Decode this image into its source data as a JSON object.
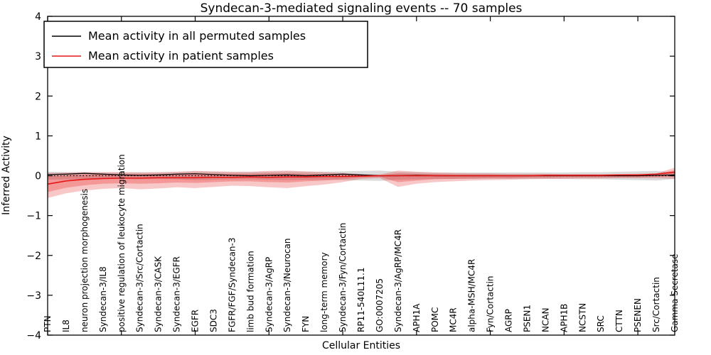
{
  "chart_data": {
    "type": "line",
    "title": "Syndecan-3-mediated signaling events -- 70 samples",
    "xlabel": "Cellular Entities",
    "ylabel": "Inferred Activity",
    "ylim": [
      -4,
      4
    ],
    "yticks": [
      -4,
      -3,
      -2,
      -1,
      0,
      1,
      2,
      3,
      4
    ],
    "xtick_step": 4,
    "grid": false,
    "legend_position": "upper left",
    "zero_line": {
      "style": "dotted",
      "color": "#000000",
      "y": 0
    },
    "categories": [
      "PTN",
      "IL8",
      "neuron projection morphogenesis",
      "Syndecan-3/IL8",
      "positive regulation of leukocyte migration",
      "Syndecan-3/Src/Cortactin",
      "Syndecan-3/CASK",
      "Syndecan-3/EGFR",
      "EGFR",
      "SDC3",
      "FGFR/FGF/Syndecan-3",
      "limb bud formation",
      "Syndecan-3/AgRP",
      "Syndecan-3/Neurocan",
      "FYN",
      "long-term memory",
      "Syndecan-3/Fyn/Cortactin",
      "RP11-540L11.1",
      "GO:0007205",
      "Syndecan-3/AgRP/MC4R",
      "APH1A",
      "POMC",
      "MC4R",
      "alpha-MSH/MC4R",
      "Fyn/Cortactin",
      "AGRP",
      "PSEN1",
      "NCAN",
      "APH1B",
      "NCSTN",
      "SRC",
      "CTTN",
      "PSENEN",
      "Src/Cortactin",
      "Gamma Secretase"
    ],
    "series": [
      {
        "name": "Mean activity in all permuted samples",
        "color": "#000000",
        "values": [
          0.03,
          0.04,
          0.06,
          0.04,
          0.02,
          0.01,
          0.02,
          0.04,
          0.05,
          0.03,
          0.01,
          0.0,
          0.01,
          0.02,
          0.0,
          0.02,
          0.04,
          0.02,
          0.0,
          0.0,
          0.01,
          0.0,
          0.0,
          0.0,
          0.0,
          0.0,
          0.0,
          0.0,
          0.0,
          0.0,
          0.0,
          0.0,
          0.0,
          0.01,
          0.02
        ]
      },
      {
        "name": "Mean activity in patient samples",
        "color": "#e51616",
        "values": [
          -0.21,
          -0.13,
          -0.09,
          -0.07,
          -0.06,
          -0.06,
          -0.05,
          -0.05,
          -0.05,
          -0.04,
          -0.04,
          -0.03,
          -0.04,
          -0.03,
          -0.03,
          -0.02,
          -0.02,
          -0.01,
          0.0,
          0.0,
          0.0,
          0.0,
          0.0,
          0.0,
          0.0,
          0.0,
          0.0,
          0.01,
          0.01,
          0.01,
          0.01,
          0.02,
          0.02,
          0.04,
          0.09
        ]
      }
    ],
    "bands": [
      {
        "name": "permuted-samples-band",
        "color": "rgba(125,125,125,0.28)",
        "upper": [
          0.1,
          0.09,
          0.09,
          0.08,
          0.08,
          0.09,
          0.08,
          0.09,
          0.11,
          0.1,
          0.09,
          0.09,
          0.1,
          0.11,
          0.1,
          0.1,
          0.11,
          0.12,
          0.13,
          0.1,
          0.09,
          0.08,
          0.08,
          0.08,
          0.08,
          0.08,
          0.08,
          0.08,
          0.08,
          0.09,
          0.09,
          0.1,
          0.11,
          0.12,
          0.08
        ],
        "lower": [
          -0.1,
          -0.09,
          -0.09,
          -0.08,
          -0.08,
          -0.09,
          -0.08,
          -0.09,
          -0.11,
          -0.1,
          -0.09,
          -0.09,
          -0.1,
          -0.11,
          -0.1,
          -0.1,
          -0.11,
          -0.12,
          -0.13,
          -0.1,
          -0.09,
          -0.08,
          -0.08,
          -0.08,
          -0.08,
          -0.08,
          -0.08,
          -0.08,
          -0.08,
          -0.09,
          -0.09,
          -0.1,
          -0.11,
          -0.12,
          -0.08
        ]
      },
      {
        "name": "patient-samples-band-outer",
        "color": "rgba(229,30,30,0.25)",
        "upper": [
          0.07,
          0.08,
          0.09,
          0.09,
          0.09,
          0.08,
          0.09,
          0.1,
          0.12,
          0.11,
          0.1,
          0.1,
          0.12,
          0.13,
          0.11,
          0.09,
          0.07,
          0.04,
          0.03,
          0.13,
          0.1,
          0.08,
          0.07,
          0.06,
          0.06,
          0.05,
          0.05,
          0.05,
          0.04,
          0.04,
          0.04,
          0.04,
          0.05,
          0.06,
          0.2
        ],
        "lower": [
          -0.56,
          -0.44,
          -0.37,
          -0.33,
          -0.31,
          -0.34,
          -0.32,
          -0.29,
          -0.31,
          -0.28,
          -0.25,
          -0.26,
          -0.29,
          -0.31,
          -0.26,
          -0.22,
          -0.16,
          -0.08,
          -0.06,
          -0.28,
          -0.2,
          -0.16,
          -0.14,
          -0.12,
          -0.11,
          -0.1,
          -0.09,
          -0.08,
          -0.08,
          -0.07,
          -0.07,
          -0.06,
          -0.06,
          -0.06,
          -0.08
        ]
      },
      {
        "name": "patient-samples-band-inner",
        "color": "rgba(229,30,30,0.28)",
        "upper": [
          0.0,
          0.02,
          0.03,
          0.04,
          0.04,
          0.04,
          0.04,
          0.05,
          0.06,
          0.05,
          0.05,
          0.05,
          0.06,
          0.06,
          0.05,
          0.04,
          0.03,
          0.02,
          0.01,
          0.06,
          0.05,
          0.04,
          0.03,
          0.03,
          0.03,
          0.02,
          0.02,
          0.02,
          0.02,
          0.02,
          0.02,
          0.02,
          0.03,
          0.04,
          0.14
        ],
        "lower": [
          -0.41,
          -0.3,
          -0.24,
          -0.2,
          -0.19,
          -0.2,
          -0.19,
          -0.17,
          -0.18,
          -0.16,
          -0.14,
          -0.14,
          -0.16,
          -0.17,
          -0.14,
          -0.12,
          -0.09,
          -0.05,
          -0.03,
          -0.16,
          -0.12,
          -0.09,
          -0.08,
          -0.07,
          -0.06,
          -0.06,
          -0.05,
          -0.05,
          -0.04,
          -0.04,
          -0.04,
          -0.04,
          -0.04,
          -0.03,
          -0.02
        ]
      }
    ]
  }
}
